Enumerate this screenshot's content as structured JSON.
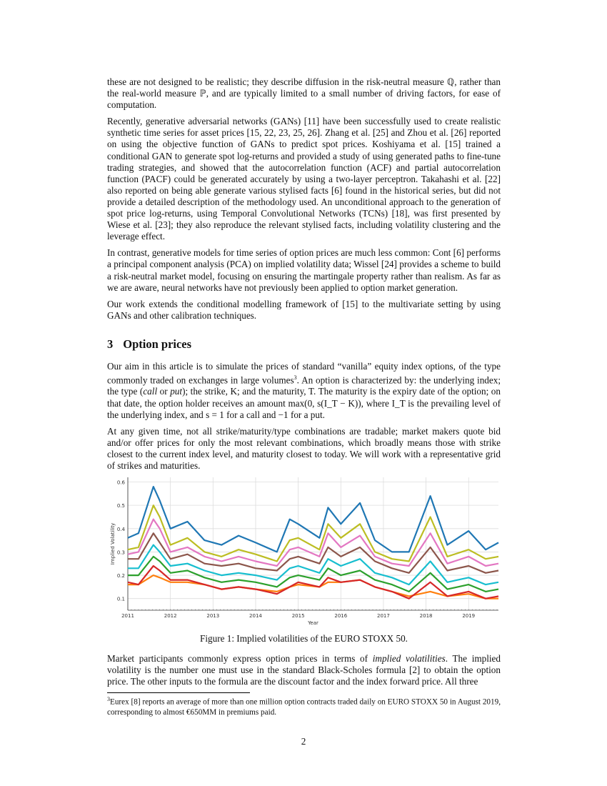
{
  "body": {
    "p1": "these are not designed to be realistic; they describe diffusion in the risk-neutral measure ℚ, rather than the real-world measure ℙ, and are typically limited to a small number of driving factors, for ease of computation.",
    "p2": "Recently, generative adversarial networks (GANs) [11] have been successfully used to create realistic synthetic time series for asset prices [15, 22, 23, 25, 26]. Zhang et al. [25] and Zhou et al. [26] reported on using the objective function of GANs to predict spot prices. Koshiyama et al. [15] trained a conditional GAN to generate spot log-returns and provided a study of using generated paths to fine-tune trading strategies, and showed that the autocorrelation function (ACF) and partial autocorrelation function (PACF) could be generated accurately by using a two-layer perceptron. Takahashi et al. [22] also reported on being able generate various stylised facts [6] found in the historical series, but did not provide a detailed description of the methodology used. An unconditional approach to the generation of spot price log-returns, using Temporal Convolutional Networks (TCNs) [18], was first presented by Wiese et al. [23]; they also reproduce the relevant stylised facts, including volatility clustering and the leverage effect.",
    "p3": "In contrast, generative models for time series of option prices are much less common: Cont [6] performs a principal component analysis (PCA) on implied volatility data; Wissel [24] provides a scheme to build a risk-neutral market model, focusing on ensuring the martingale property rather than realism. As far as we are aware, neural networks have not previously been applied to option market generation.",
    "p4": "Our work extends the conditional modelling framework of [15] to the multivariate setting by using GANs and other calibration techniques.",
    "section_num": "3",
    "section_title": "Option prices",
    "p5a": "Our aim in this article is to simulate the prices of standard “vanilla” equity index options, of the type commonly traded on exchanges in large volumes",
    "p5_fn": "3",
    "p5b": ". An option is characterized by: the underlying index; the type (",
    "p5_call": "call",
    "p5_or": " or ",
    "p5_put": "put",
    "p5c": "); the strike, K; and the maturity, T. The maturity is the expiry date of the option; on that date, the option holder receives an amount max(0, s(I_T − K)), where I_T is the prevailing level of the underlying index, and s = 1 for a call and −1 for a put.",
    "p6": "At any given time, not all strike/maturity/type combinations are tradable; market makers quote bid and/or offer prices for only the most relevant combinations, which broadly means those with strike closest to the current index level, and maturity closest to today. We will work with a representative grid of strikes and maturities.",
    "caption": "Figure 1: Implied volatilities of the EURO STOXX 50.",
    "p7a": "Market participants commonly express option prices in terms of ",
    "p7_em": "implied volatilities",
    "p7b": ". The implied volatility is the number one must use in the standard Black-Scholes formula [2] to obtain the option price. The other inputs to the formula are the discount factor and the index forward price. All three",
    "footnote_mark": "3",
    "footnote": "Eurex [8] reports an average of more than one million option contracts traded daily on EURO STOXX 50 in August 2019, corresponding to almost €650MM in premiums paid.",
    "page_number": "2"
  },
  "chart_data": {
    "type": "line",
    "xlabel": "Year",
    "ylabel": "Implied Volatility",
    "xlim": [
      2011,
      2019.7
    ],
    "ylim": [
      0.05,
      0.62
    ],
    "xticks": [
      "2011",
      "2012",
      "2013",
      "2014",
      "2015",
      "2016",
      "2017",
      "2018",
      "2019"
    ],
    "yticks": [
      "0.1",
      "0.2",
      "0.3",
      "0.4",
      "0.5",
      "0.6"
    ],
    "grid": true,
    "x": [
      2011.0,
      2011.25,
      2011.6,
      2011.75,
      2012.0,
      2012.4,
      2012.8,
      2013.2,
      2013.6,
      2014.0,
      2014.5,
      2014.8,
      2015.0,
      2015.5,
      2015.7,
      2016.0,
      2016.45,
      2016.8,
      2017.2,
      2017.6,
      2018.1,
      2018.5,
      2019.0,
      2019.4,
      2019.7
    ],
    "series": [
      {
        "color": "#1f77b4",
        "values": [
          0.36,
          0.38,
          0.58,
          0.52,
          0.4,
          0.43,
          0.35,
          0.33,
          0.37,
          0.34,
          0.3,
          0.44,
          0.42,
          0.36,
          0.49,
          0.42,
          0.51,
          0.35,
          0.3,
          0.3,
          0.54,
          0.33,
          0.39,
          0.31,
          0.34
        ]
      },
      {
        "color": "#bcbd22",
        "values": [
          0.31,
          0.32,
          0.5,
          0.45,
          0.33,
          0.36,
          0.3,
          0.28,
          0.31,
          0.29,
          0.26,
          0.35,
          0.36,
          0.31,
          0.42,
          0.36,
          0.42,
          0.3,
          0.27,
          0.26,
          0.45,
          0.28,
          0.31,
          0.27,
          0.28
        ]
      },
      {
        "color": "#e377c2",
        "values": [
          0.29,
          0.3,
          0.44,
          0.4,
          0.3,
          0.32,
          0.28,
          0.26,
          0.28,
          0.26,
          0.24,
          0.31,
          0.32,
          0.28,
          0.38,
          0.32,
          0.37,
          0.28,
          0.25,
          0.24,
          0.38,
          0.25,
          0.28,
          0.24,
          0.25
        ]
      },
      {
        "color": "#8c564b",
        "values": [
          0.27,
          0.27,
          0.38,
          0.34,
          0.27,
          0.29,
          0.25,
          0.24,
          0.25,
          0.23,
          0.22,
          0.27,
          0.28,
          0.25,
          0.32,
          0.28,
          0.32,
          0.26,
          0.23,
          0.21,
          0.32,
          0.22,
          0.24,
          0.21,
          0.22
        ]
      },
      {
        "color": "#17becf",
        "values": [
          0.23,
          0.23,
          0.33,
          0.3,
          0.24,
          0.25,
          0.22,
          0.2,
          0.21,
          0.2,
          0.18,
          0.23,
          0.24,
          0.21,
          0.27,
          0.24,
          0.27,
          0.21,
          0.19,
          0.16,
          0.26,
          0.17,
          0.19,
          0.16,
          0.17
        ]
      },
      {
        "color": "#2ca02c",
        "values": [
          0.2,
          0.2,
          0.28,
          0.26,
          0.21,
          0.22,
          0.19,
          0.17,
          0.18,
          0.17,
          0.15,
          0.19,
          0.2,
          0.18,
          0.23,
          0.2,
          0.22,
          0.18,
          0.16,
          0.13,
          0.21,
          0.14,
          0.16,
          0.13,
          0.14
        ]
      },
      {
        "color": "#d62728",
        "values": [
          0.17,
          0.16,
          0.24,
          0.22,
          0.18,
          0.18,
          0.16,
          0.14,
          0.15,
          0.14,
          0.12,
          0.15,
          0.17,
          0.15,
          0.19,
          0.17,
          0.18,
          0.15,
          0.13,
          0.1,
          0.17,
          0.11,
          0.13,
          0.1,
          0.11
        ]
      },
      {
        "color": "#ff7f0e",
        "values": [
          0.16,
          0.16,
          0.2,
          0.19,
          0.17,
          0.17,
          0.16,
          0.14,
          0.15,
          0.14,
          0.13,
          0.15,
          0.16,
          0.15,
          0.17,
          0.17,
          0.18,
          0.15,
          0.13,
          0.11,
          0.13,
          0.11,
          0.12,
          0.1,
          0.1
        ]
      }
    ]
  }
}
